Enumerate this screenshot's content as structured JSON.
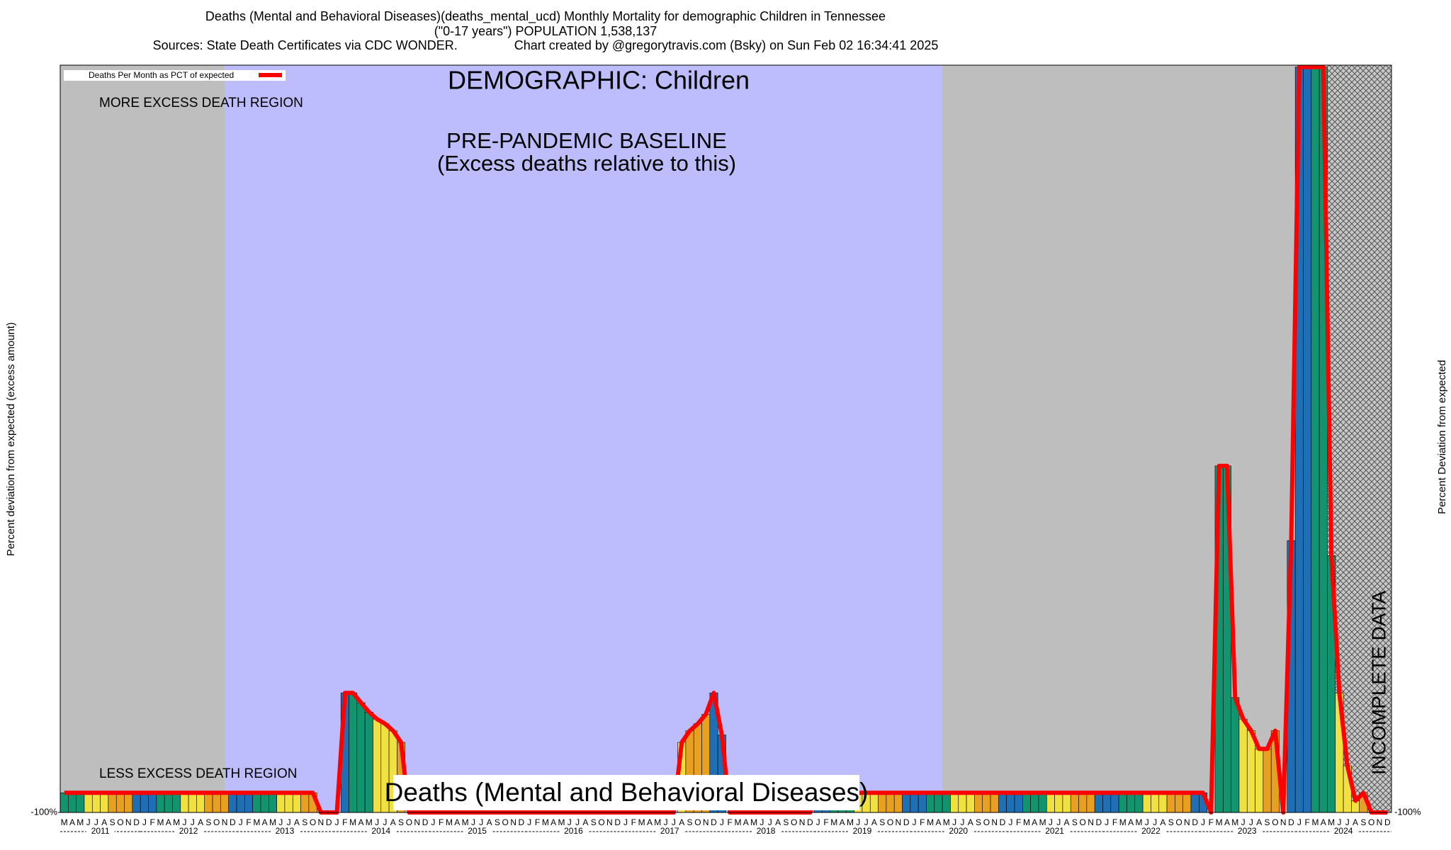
{
  "chart_data": {
    "type": "bar",
    "title": [
      "Deaths (Mental and Behavioral Diseases)(deaths_mental_ucd) Monthly Mortality for demographic Children in Tennessee",
      "(\"0-17 years\") POPULATION 1,538,137",
      "Sources: State Death Certificates via CDC WONDER.                Chart created by @gregorytravis.com (Bsky) on Sun Feb 02 16:34:41 2025"
    ],
    "legend_label": "Deaths Per Month as PCT of expected",
    "line_color": "#ff0000",
    "demographic": "DEMOGRAPHIC: Children",
    "more_excess": "MORE EXCESS DEATH REGION",
    "less_excess": "LESS EXCESS DEATH REGION",
    "baseline_note": [
      "PRE-PANDEMIC BASELINE",
      "(Excess deaths relative to this)"
    ],
    "incomplete": "INCOMPLETE DATA",
    "bottom_title": "Deaths (Mental and Behavioral Diseases)",
    "y_label_left": "Percent deviation from expected (excess amount)",
    "y_label_right": "Percent Deviation from expected",
    "month_colors": [
      "#1f6fb4",
      "#1f6fb4",
      "#12946e",
      "#12946e",
      "#12946e",
      "#f0e040",
      "#f0e040",
      "#f0e040",
      "#e8a020",
      "#e8a020",
      "#e8a020",
      "#1f6fb4"
    ],
    "ylim": [
      -100,
      3100
    ],
    "yticks": [
      {
        "value": -100,
        "label": "-100%"
      }
    ],
    "years": [
      {
        "label": "2011",
        "months": [
          "M",
          "A",
          "M",
          "J",
          "J",
          "A",
          "S",
          "O",
          "N",
          "D"
        ],
        "values": [
          -16,
          -16,
          -16,
          -16,
          -16,
          -16,
          -16,
          -16,
          -16,
          -16
        ]
      },
      {
        "label": "2012",
        "months": [
          "J",
          "F",
          "M",
          "A",
          "M",
          "J",
          "J",
          "A",
          "S",
          "O",
          "N",
          "D"
        ],
        "values": [
          -16,
          -16,
          -16,
          -16,
          -16,
          -16,
          -16,
          -16,
          -16,
          -16,
          -16,
          -16
        ]
      },
      {
        "label": "2013",
        "months": [
          "J",
          "F",
          "M",
          "A",
          "M",
          "J",
          "J",
          "A",
          "S",
          "O",
          "N",
          "D"
        ],
        "values": [
          -16,
          -16,
          -16,
          -16,
          -16,
          -16,
          -16,
          -16,
          -16,
          -16,
          -100,
          -100
        ]
      },
      {
        "label": "2014",
        "months": [
          "J",
          "F",
          "M",
          "A",
          "M",
          "J",
          "J",
          "A",
          "S",
          "O",
          "N",
          "D"
        ],
        "values": [
          -100,
          412,
          412,
          370,
          330,
          300,
          280,
          250,
          200,
          -100,
          -100,
          -100
        ]
      },
      {
        "label": "2015",
        "months": [
          "J",
          "F",
          "M",
          "A",
          "M",
          "J",
          "J",
          "A",
          "S",
          "O",
          "N",
          "D"
        ],
        "values": [
          -100,
          -100,
          -100,
          -100,
          -100,
          -100,
          -100,
          -100,
          -100,
          -100,
          -100,
          -100
        ]
      },
      {
        "label": "2016",
        "months": [
          "J",
          "F",
          "M",
          "A",
          "M",
          "J",
          "J",
          "A",
          "S",
          "O",
          "N",
          "D"
        ],
        "values": [
          -100,
          -100,
          -100,
          -100,
          -100,
          -100,
          -100,
          -100,
          -100,
          -100,
          -100,
          -100
        ]
      },
      {
        "label": "2017",
        "months": [
          "J",
          "F",
          "M",
          "A",
          "M",
          "J",
          "J",
          "A",
          "S",
          "O",
          "N",
          "D"
        ],
        "values": [
          -100,
          -100,
          -100,
          -100,
          -100,
          -100,
          -100,
          200,
          250,
          280,
          320,
          412
        ]
      },
      {
        "label": "2018",
        "months": [
          "J",
          "F",
          "M",
          "A",
          "M",
          "J",
          "J",
          "A",
          "S",
          "O",
          "N",
          "D"
        ],
        "values": [
          232,
          -100,
          -100,
          -100,
          -100,
          -100,
          -100,
          -100,
          -100,
          -100,
          -100,
          -100
        ]
      },
      {
        "label": "2019",
        "months": [
          "J",
          "F",
          "M",
          "A",
          "M",
          "J",
          "J",
          "A",
          "S",
          "O",
          "N",
          "D"
        ],
        "values": [
          -16,
          -16,
          -16,
          -16,
          -16,
          -16,
          -16,
          -16,
          -16,
          -16,
          -16,
          -16
        ]
      },
      {
        "label": "2020",
        "months": [
          "J",
          "F",
          "M",
          "A",
          "M",
          "J",
          "J",
          "A",
          "S",
          "O",
          "N",
          "D"
        ],
        "values": [
          -16,
          -16,
          -16,
          -16,
          -16,
          -16,
          -16,
          -16,
          -16,
          -16,
          -16,
          -16
        ]
      },
      {
        "label": "2021",
        "months": [
          "J",
          "F",
          "M",
          "A",
          "M",
          "J",
          "J",
          "A",
          "S",
          "O",
          "N",
          "D"
        ],
        "values": [
          -16,
          -16,
          -16,
          -16,
          -16,
          -16,
          -16,
          -16,
          -16,
          -16,
          -16,
          -16
        ]
      },
      {
        "label": "2022",
        "months": [
          "J",
          "F",
          "M",
          "A",
          "M",
          "J",
          "J",
          "A",
          "S",
          "O",
          "N",
          "D"
        ],
        "values": [
          -16,
          -16,
          -16,
          -16,
          -16,
          -16,
          -16,
          -16,
          -16,
          -16,
          -16,
          -16
        ]
      },
      {
        "label": "2023",
        "months": [
          "J",
          "F",
          "M",
          "A",
          "M",
          "J",
          "J",
          "A",
          "S",
          "O",
          "N",
          "D"
        ],
        "values": [
          -16,
          -100,
          1384,
          1384,
          392,
          300,
          250,
          172,
          172,
          250,
          -100,
          1064
        ]
      },
      {
        "label": "2024",
        "months": [
          "J",
          "F",
          "M",
          "A",
          "M",
          "J",
          "J",
          "A",
          "S",
          "O",
          "N",
          "D"
        ],
        "values": [
          3092,
          3092,
          3092,
          3092,
          1000,
          412,
          100,
          -50,
          -16,
          -100,
          -100,
          -100
        ]
      }
    ]
  }
}
